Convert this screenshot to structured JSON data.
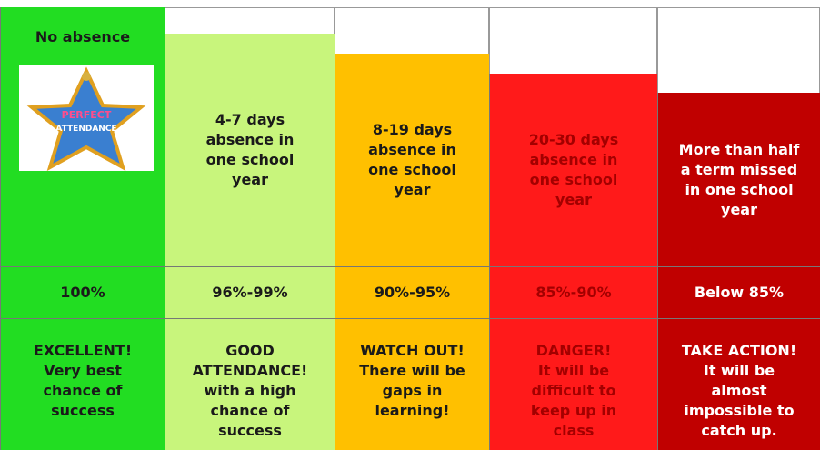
{
  "image_text": [
    "PERFECT",
    "ATTENDANCE"
  ],
  "columns": [
    {
      "heading": [
        "No absence"
      ],
      "percent": "100%",
      "outcome": [
        "EXCELLENT!",
        "Very best",
        "chance of",
        "success"
      ]
    },
    {
      "heading": [
        "4-7 days",
        "absence in",
        "one school",
        "year"
      ],
      "percent": "96%-99%",
      "outcome": [
        "GOOD",
        "ATTENDANCE!",
        "with a high",
        "chance of",
        "success"
      ]
    },
    {
      "heading": [
        "8-19 days",
        "absence in",
        "one school",
        "year"
      ],
      "percent": "90%-95%",
      "outcome": [
        "WATCH OUT!",
        "There will be",
        "gaps in",
        "learning!"
      ]
    },
    {
      "heading": [
        "20-30 days",
        "absence in",
        "one school",
        "year"
      ],
      "percent": "85%-90%",
      "outcome": [
        "DANGER!",
        "It will be",
        "difficult to",
        "keep up in",
        "class"
      ]
    },
    {
      "heading": [
        "More than half",
        "a term missed",
        "in one school",
        "year"
      ],
      "percent": "Below 85%",
      "outcome": [
        "TAKE ACTION!",
        "It will be",
        "almost",
        "impossible to",
        "catch up."
      ]
    }
  ]
}
